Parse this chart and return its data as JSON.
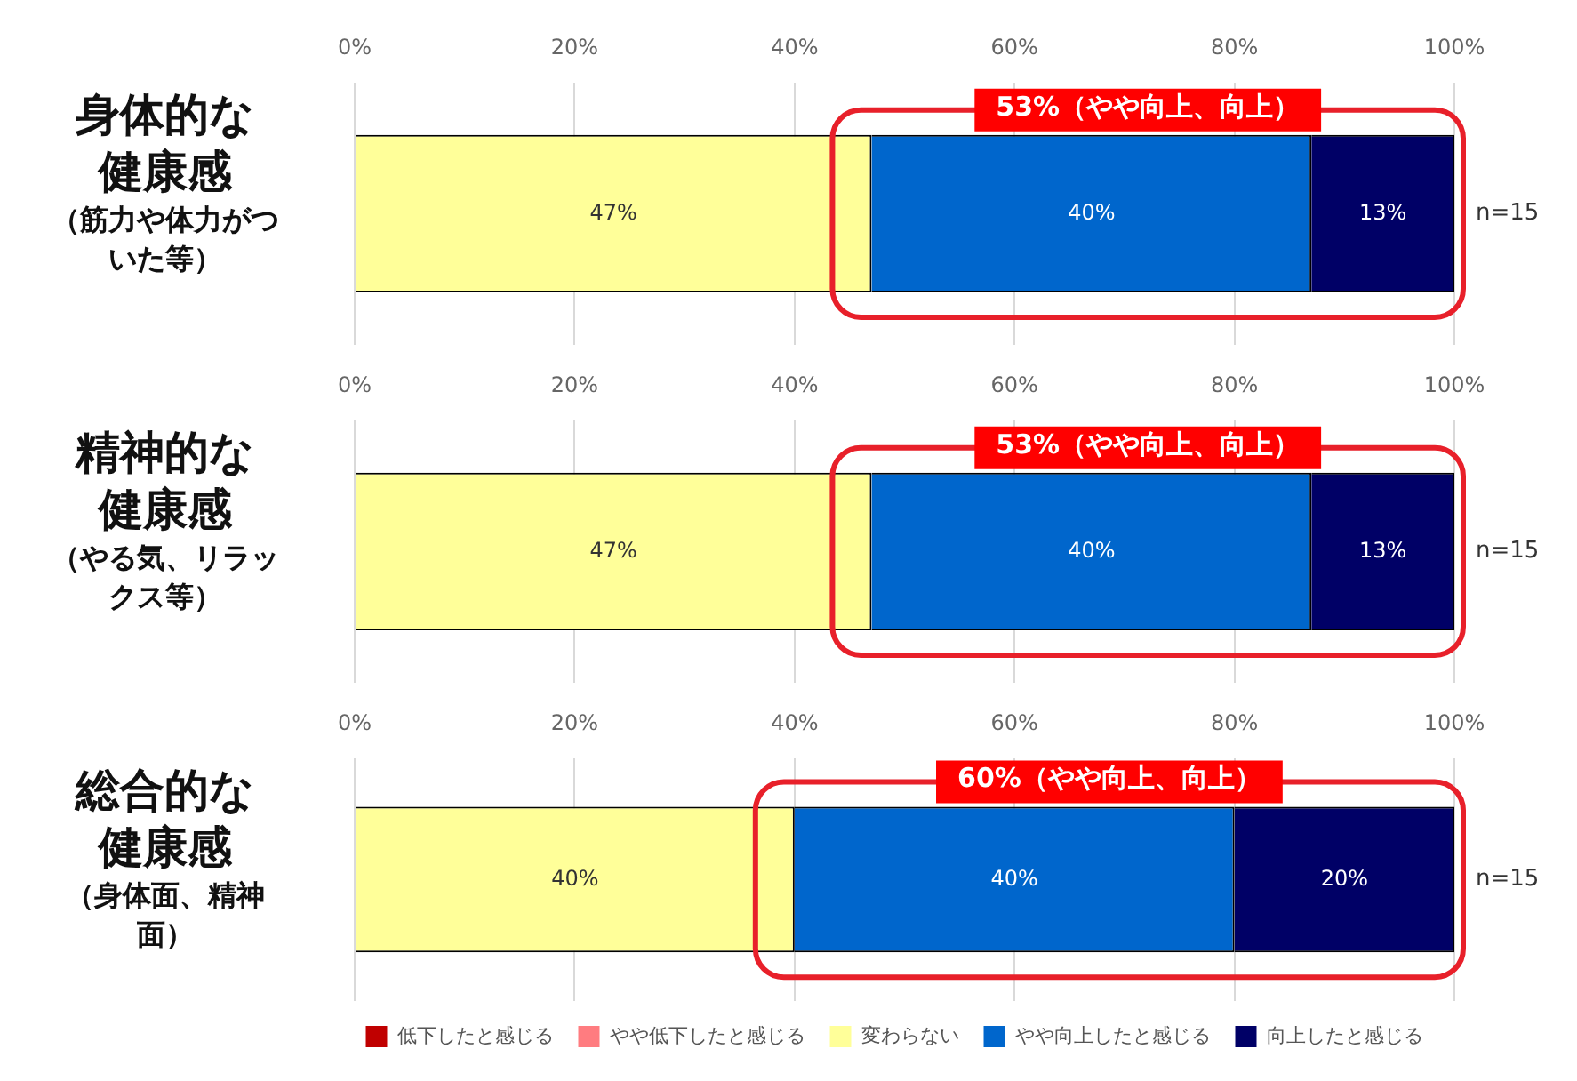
{
  "chart_data": [
    {
      "type": "bar",
      "orientation": "horizontal",
      "stacked": true,
      "categories": [
        "身体的な健康感（筋力や体力がついた等）"
      ],
      "xlim": [
        0,
        100
      ],
      "xticks": [
        {
          "value": 0,
          "label": "0%"
        },
        {
          "value": 20,
          "label": "20%"
        },
        {
          "value": 40,
          "label": "40%"
        },
        {
          "value": 60,
          "label": "60%"
        },
        {
          "value": 80,
          "label": "80%"
        },
        {
          "value": 100,
          "label": "100%"
        }
      ],
      "grid": "x",
      "legend": false,
      "series": [
        {
          "color": "#c00000",
          "values": [
            0
          ],
          "value_labels": [
            null
          ]
        },
        {
          "color": "#ff7c80",
          "values": [
            0
          ],
          "value_labels": [
            null
          ]
        },
        {
          "color": "#ffff99",
          "values": [
            47
          ],
          "value_labels": [
            "47%"
          ]
        },
        {
          "color": "#0066cc",
          "values": [
            40
          ],
          "value_labels": [
            "40%"
          ]
        },
        {
          "color": "#000066",
          "values": [
            13
          ],
          "value_labels": [
            "13%"
          ]
        }
      ],
      "annotations": [
        "53%（やや向上、向上）",
        "n=15"
      ]
    },
    {
      "type": "bar",
      "orientation": "horizontal",
      "stacked": true,
      "categories": [
        "精神的な健康感（やる気、リラックス等）"
      ],
      "xlim": [
        0,
        100
      ],
      "xticks": [
        {
          "value": 0,
          "label": "0%"
        },
        {
          "value": 20,
          "label": "20%"
        },
        {
          "value": 40,
          "label": "40%"
        },
        {
          "value": 60,
          "label": "60%"
        },
        {
          "value": 80,
          "label": "80%"
        },
        {
          "value": 100,
          "label": "100%"
        }
      ],
      "grid": "x",
      "legend": false,
      "series": [
        {
          "color": "#c00000",
          "values": [
            0
          ],
          "value_labels": [
            null
          ]
        },
        {
          "color": "#ff7c80",
          "values": [
            0
          ],
          "value_labels": [
            null
          ]
        },
        {
          "color": "#ffff99",
          "values": [
            47
          ],
          "value_labels": [
            "47%"
          ]
        },
        {
          "color": "#0066cc",
          "values": [
            40
          ],
          "value_labels": [
            "40%"
          ]
        },
        {
          "color": "#000066",
          "values": [
            13
          ],
          "value_labels": [
            "13%"
          ]
        }
      ],
      "annotations": [
        "53%（やや向上、向上）",
        "n=15"
      ]
    },
    {
      "type": "bar",
      "orientation": "horizontal",
      "stacked": true,
      "categories": [
        "総合的な健康感（身体面、精神面）"
      ],
      "xlim": [
        0,
        100
      ],
      "xticks": [
        {
          "value": 0,
          "label": "0%"
        },
        {
          "value": 20,
          "label": "20%"
        },
        {
          "value": 40,
          "label": "40%"
        },
        {
          "value": 60,
          "label": "60%"
        },
        {
          "value": 80,
          "label": "80%"
        },
        {
          "value": 100,
          "label": "100%"
        }
      ],
      "grid": "x",
      "legend": "bottom",
      "series": [
        {
          "name": "低下したと感じる",
          "color": "#c00000",
          "values": [
            0
          ],
          "value_labels": [
            null
          ]
        },
        {
          "name": "やや低下したと感じる",
          "color": "#ff7c80",
          "values": [
            0
          ],
          "value_labels": [
            null
          ]
        },
        {
          "name": "変わらない",
          "color": "#ffff99",
          "values": [
            40
          ],
          "value_labels": [
            "40%"
          ]
        },
        {
          "name": "やや向上したと感じる",
          "color": "#0066cc",
          "values": [
            40
          ],
          "value_labels": [
            "40%"
          ]
        },
        {
          "name": "向上したと感じる",
          "color": "#000066",
          "values": [
            20
          ],
          "value_labels": [
            "20%"
          ]
        }
      ],
      "annotations": [
        "60%（やや向上、向上）",
        "n=15"
      ]
    }
  ]
}
